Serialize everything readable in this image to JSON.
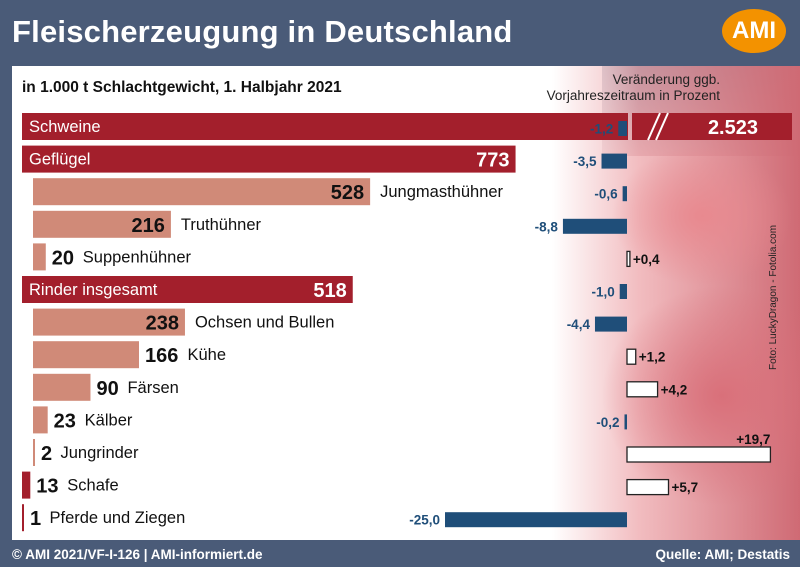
{
  "header": {
    "title": "Fleischerzeugung in Deutschland",
    "logo_text": "AMI",
    "subtitle": "in 1.000 t Schlachtgewicht, 1. Halbjahr 2021",
    "change_header_line1": "Veränderung ggb.",
    "change_header_line2": "Vorjahreszeitraum in Prozent"
  },
  "footer": {
    "copyright": "© AMI 2021/VF-I-126 | AMI-informiert.de",
    "source": "Quelle: AMI; Destatis"
  },
  "photo_credit": "Foto: LuckyDragon - Fotolia.com",
  "colors": {
    "group_bar": "#a31f2c",
    "sub_bar": "#d08a78",
    "change_negative": "#1f4e79",
    "change_positive": "#ffffff",
    "background": "#4a5b78"
  },
  "chart_data": {
    "type": "bar",
    "unit": "1.000 t Schlachtgewicht",
    "categories": [
      "Schweine",
      "Geflügel",
      "Jungmasthühner",
      "Truthühner",
      "Suppenhühner",
      "Rinder insgesamt",
      "Ochsen und Bullen",
      "Kühe",
      "Färsen",
      "Kälber",
      "Jungrinder",
      "Schafe",
      "Pferde und Ziegen"
    ],
    "rows": [
      {
        "label": "Schweine",
        "value": 2523,
        "value_label": "2.523",
        "change": -1.2,
        "change_label": "-1,2",
        "group": true
      },
      {
        "label": "Geflügel",
        "value": 773,
        "value_label": "773",
        "change": -3.5,
        "change_label": "-3,5",
        "group": true
      },
      {
        "label": "Jungmasthühner",
        "value": 528,
        "value_label": "528",
        "change": -0.6,
        "change_label": "-0,6",
        "group": false
      },
      {
        "label": "Truthühner",
        "value": 216,
        "value_label": "216",
        "change": -8.8,
        "change_label": "-8,8",
        "group": false
      },
      {
        "label": "Suppenhühner",
        "value": 20,
        "value_label": "20",
        "change": 0.4,
        "change_label": "+0,4",
        "group": false
      },
      {
        "label": "Rinder insgesamt",
        "value": 518,
        "value_label": "518",
        "change": -1.0,
        "change_label": "-1,0",
        "group": true
      },
      {
        "label": "Ochsen und Bullen",
        "value": 238,
        "value_label": "238",
        "change": -4.4,
        "change_label": "-4,4",
        "group": false
      },
      {
        "label": "Kühe",
        "value": 166,
        "value_label": "166",
        "change": 1.2,
        "change_label": "+1,2",
        "group": false
      },
      {
        "label": "Färsen",
        "value": 90,
        "value_label": "90",
        "change": 4.2,
        "change_label": "+4,2",
        "group": false
      },
      {
        "label": "Kälber",
        "value": 23,
        "value_label": "23",
        "change": -0.2,
        "change_label": "-0,2",
        "group": false
      },
      {
        "label": "Jungrinder",
        "value": 2,
        "value_label": "2",
        "change": 19.7,
        "change_label": "+19,7",
        "group": false
      },
      {
        "label": "Schafe",
        "value": 13,
        "value_label": "13",
        "change": 5.7,
        "change_label": "+5,7",
        "group": true
      },
      {
        "label": "Pferde und Ziegen",
        "value": 1,
        "value_label": "1",
        "change": -25.0,
        "change_label": "-25,0",
        "group": true
      }
    ]
  }
}
